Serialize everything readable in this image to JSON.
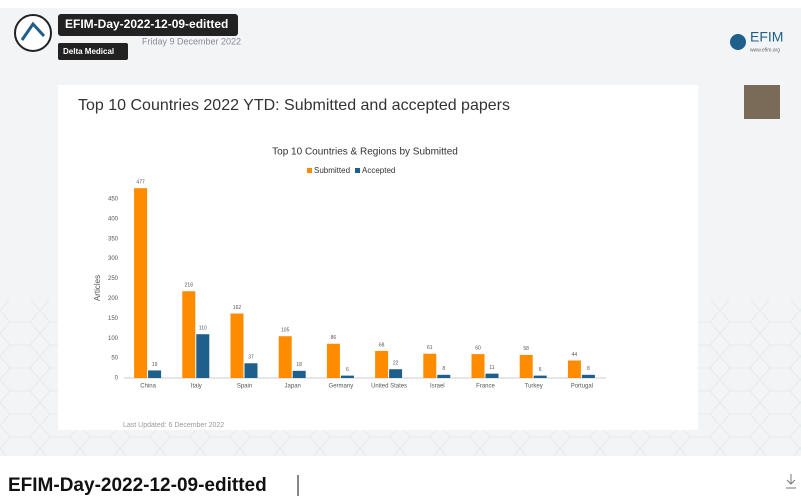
{
  "video": {
    "title": "EFIM-Day-2022-12-09-editted",
    "channel": "Delta Medical",
    "date": "Friday 9 December 2022",
    "brand": "EFIM",
    "brand_url": "www.efim.org"
  },
  "slide": {
    "title": "Top 10 Countries 2022 YTD: Submitted and accepted papers",
    "footer": "Last Updated: 6 December 2022"
  },
  "chart_data": {
    "type": "bar",
    "title": "Top 10 Countries & Regions by Submitted",
    "y_label": "Articles",
    "categories": [
      "China",
      "Italy",
      "Spain",
      "Japan",
      "Germany",
      "United States",
      "Israel",
      "France",
      "Turkey",
      "Portugal"
    ],
    "series": [
      {
        "name": "Submitted",
        "color": "#ff8c00",
        "values": [
          477,
          218,
          162,
          105,
          86,
          68,
          61,
          60,
          58,
          44
        ]
      },
      {
        "name": "Accepted",
        "color": "#1f5f8b",
        "values": [
          19,
          110,
          37,
          18,
          6,
          22,
          8,
          11,
          6,
          8
        ]
      }
    ],
    "ylim": [
      0,
      500
    ],
    "yticks": [
      0,
      50,
      100,
      150,
      200,
      250,
      300,
      350,
      400,
      450
    ],
    "grid": false,
    "legend": "top"
  },
  "page_title": "EFIM-Day-2022-12-09-editted"
}
